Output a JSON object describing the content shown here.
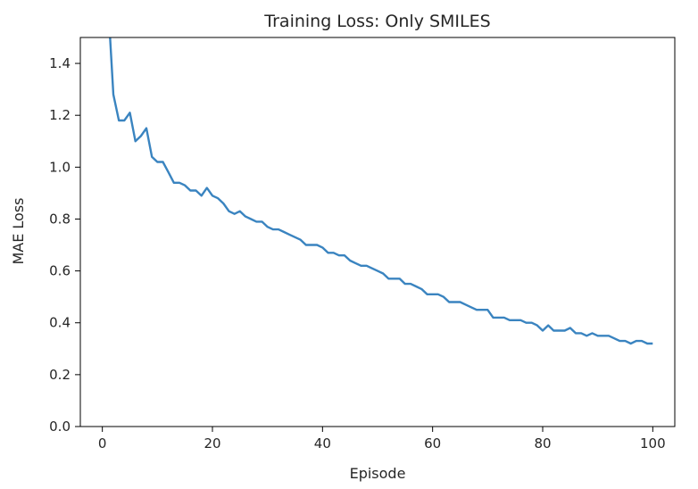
{
  "chart_data": {
    "type": "line",
    "title": "Training Loss: Only SMILES",
    "xlabel": "Episode",
    "ylabel": "MAE Loss",
    "xlim": [
      -4,
      104
    ],
    "ylim": [
      0.0,
      1.5
    ],
    "xticks": [
      0,
      20,
      40,
      60,
      80,
      100
    ],
    "yticks": [
      0.0,
      0.2,
      0.4,
      0.6,
      0.8,
      1.0,
      1.2,
      1.4
    ],
    "grid": false,
    "series": [
      {
        "color": "#3a84c0",
        "x": [
          1,
          2,
          3,
          4,
          5,
          6,
          7,
          8,
          9,
          10,
          11,
          12,
          13,
          14,
          15,
          16,
          17,
          18,
          19,
          20,
          21,
          22,
          23,
          24,
          25,
          26,
          27,
          28,
          29,
          30,
          31,
          32,
          33,
          34,
          35,
          36,
          37,
          38,
          39,
          40,
          41,
          42,
          43,
          44,
          45,
          46,
          47,
          48,
          49,
          50,
          51,
          52,
          53,
          54,
          55,
          56,
          57,
          58,
          59,
          60,
          61,
          62,
          63,
          64,
          65,
          66,
          67,
          68,
          69,
          70,
          71,
          72,
          73,
          74,
          75,
          76,
          77,
          78,
          79,
          80,
          81,
          82,
          83,
          84,
          85,
          86,
          87,
          88,
          89,
          90,
          91,
          92,
          93,
          94,
          95,
          96,
          97,
          98,
          99,
          100
        ],
        "y": [
          1.65,
          1.28,
          1.18,
          1.18,
          1.21,
          1.1,
          1.12,
          1.15,
          1.04,
          1.02,
          1.02,
          0.98,
          0.94,
          0.94,
          0.93,
          0.91,
          0.91,
          0.89,
          0.92,
          0.89,
          0.88,
          0.86,
          0.83,
          0.82,
          0.83,
          0.81,
          0.8,
          0.79,
          0.79,
          0.77,
          0.76,
          0.76,
          0.75,
          0.74,
          0.73,
          0.72,
          0.7,
          0.7,
          0.7,
          0.69,
          0.67,
          0.67,
          0.66,
          0.66,
          0.64,
          0.63,
          0.62,
          0.62,
          0.61,
          0.6,
          0.59,
          0.57,
          0.57,
          0.57,
          0.55,
          0.55,
          0.54,
          0.53,
          0.51,
          0.51,
          0.51,
          0.5,
          0.48,
          0.48,
          0.48,
          0.47,
          0.46,
          0.45,
          0.45,
          0.45,
          0.42,
          0.42,
          0.42,
          0.41,
          0.41,
          0.41,
          0.4,
          0.4,
          0.39,
          0.37,
          0.39,
          0.37,
          0.37,
          0.37,
          0.38,
          0.36,
          0.36,
          0.35,
          0.36,
          0.35,
          0.35,
          0.35,
          0.34,
          0.33,
          0.33,
          0.32,
          0.33,
          0.33,
          0.32,
          0.32
        ]
      }
    ]
  }
}
